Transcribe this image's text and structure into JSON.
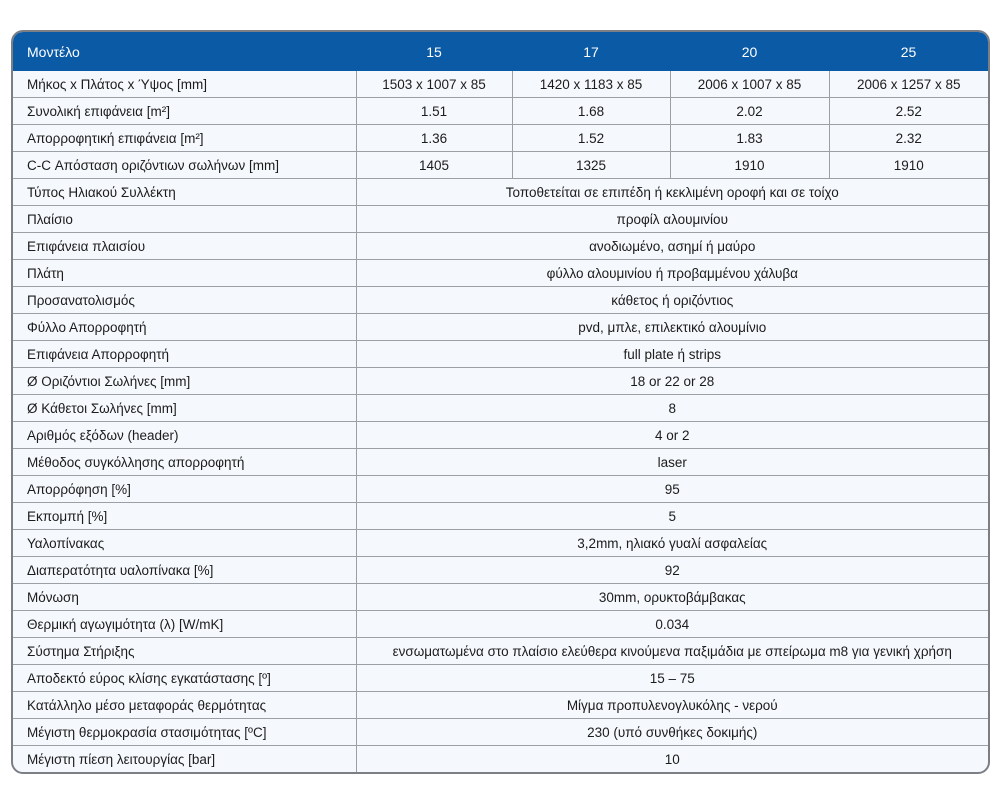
{
  "header": {
    "label": "Μοντέλο",
    "models": [
      "15",
      "17",
      "20",
      "25"
    ]
  },
  "rows_multi": [
    {
      "label": "Μήκος x Πλάτος x Ύψος [mm]",
      "values": [
        "1503 x 1007 x 85",
        "1420 x 1183 x 85",
        "2006 x 1007 x 85",
        "2006 x 1257 x 85"
      ]
    },
    {
      "label": "Συνολική επιφάνεια [m²]",
      "values": [
        "1.51",
        "1.68",
        "2.02",
        "2.52"
      ]
    },
    {
      "label": "Απορροφητική επιφάνεια [m²]",
      "values": [
        "1.36",
        "1.52",
        "1.83",
        "2.32"
      ]
    },
    {
      "label": "C-C Απόσταση οριζόντιων σωλήνων [mm]",
      "values": [
        "1405",
        "1325",
        "1910",
        "1910"
      ]
    }
  ],
  "rows_single": [
    {
      "label": "Τύπος Ηλιακού Συλλέκτη",
      "value": "Τοποθετείται σε επιπέδη ή κεκλιμένη οροφή και σε τοίχο"
    },
    {
      "label": "Πλαίσιο",
      "value": "προφίλ αλουμινίου"
    },
    {
      "label": "Επιφάνεια πλαισίου",
      "value": "ανοδιωμένο, ασημί ή μαύρο"
    },
    {
      "label": "Πλάτη",
      "value": "φύλλο αλουμινίου ή προβαμμένου χάλυβα"
    },
    {
      "label": "Προσανατολισμός",
      "value": "κάθετος ή οριζόντιος"
    },
    {
      "label": "Φύλλο Απορροφητή",
      "value": "pvd, μπλε, επιλεκτικό αλουμίνιο"
    },
    {
      "label": "Επιφάνεια Απορροφητή",
      "value": "full plate ή strips"
    },
    {
      "label": "Ø Οριζόντιοι Σωλήνες [mm]",
      "value": "18 or 22 or 28"
    },
    {
      "label": "Ø Κάθετοι Σωλήνες [mm]",
      "value": "8"
    },
    {
      "label": "Αριθμός εξόδων (header)",
      "value": "4 or 2"
    },
    {
      "label": "Μέθοδος συγκόλλησης απορροφητή",
      "value": "laser"
    },
    {
      "label": "Απορρόφηση [%]",
      "value": "95"
    },
    {
      "label": "Εκπομπή [%]",
      "value": "5"
    },
    {
      "label": "Υαλοπίνακας",
      "value": "3,2mm, ηλιακό γυαλί ασφαλείας"
    },
    {
      "label": "Διαπερατότητα υαλοπίνακα [%]",
      "value": "92"
    },
    {
      "label": "Μόνωση",
      "value": "30mm, ορυκτοβάμβακας"
    },
    {
      "label": "Θερμική αγωγιμότητα (λ) [W/mK]",
      "value": "0.034"
    },
    {
      "label": "Σύστημα Στήριξης",
      "value": "ενσωματωμένα στο πλαίσιο ελεύθερα κινούμενα παξιμάδια με σπείρωμα m8 για γενική χρήση"
    },
    {
      "label": "Αποδεκτό εύρος κλίσης εγκατάστασης [º]",
      "value": "15 – 75"
    },
    {
      "label": "Κατάλληλο μέσο μεταφοράς θερμότητας",
      "value": "Μίγμα προπυλενογλυκόλης - νερού"
    },
    {
      "label": "Μέγιστη θερμοκρασία στασιμότητας [ºC]",
      "value": "230 (υπό συνθήκες δοκιμής)"
    },
    {
      "label": "Μέγιστη πίεση λειτουργίας [bar]",
      "value": "10"
    }
  ]
}
